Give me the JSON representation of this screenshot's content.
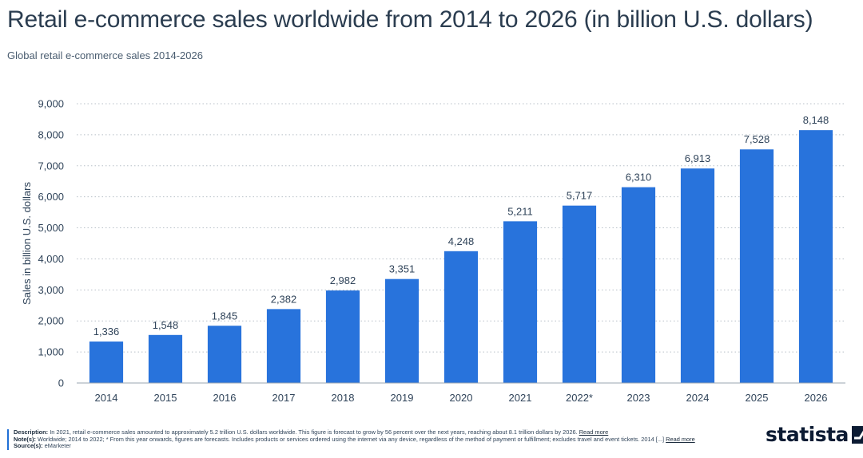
{
  "header": {
    "title": "Retail e-commerce sales worldwide from 2014 to 2026 (in billion U.S. dollars)",
    "subtitle": "Global retail e-commerce sales 2014-2026"
  },
  "chart_data": {
    "type": "bar",
    "categories": [
      "2014",
      "2015",
      "2016",
      "2017",
      "2018",
      "2019",
      "2020",
      "2021",
      "2022*",
      "2023",
      "2024",
      "2025",
      "2026"
    ],
    "values": [
      1336,
      1548,
      1845,
      2382,
      2982,
      3351,
      4248,
      5211,
      5717,
      6310,
      6913,
      7528,
      8148
    ],
    "value_labels": [
      "1,336",
      "1,548",
      "1,845",
      "2,382",
      "2,982",
      "3,351",
      "4,248",
      "5,211",
      "5,717",
      "6,310",
      "6,913",
      "7,528",
      "8,148"
    ],
    "title": "Retail e-commerce sales worldwide from 2014 to 2026 (in billion U.S. dollars)",
    "ylabel": "Sales in billion U.S. dollars",
    "xlabel": "",
    "ylim": [
      0,
      9000
    ],
    "yticks": [
      0,
      1000,
      2000,
      3000,
      4000,
      5000,
      6000,
      7000,
      8000,
      9000
    ],
    "ytick_labels": [
      "0",
      "1,000",
      "2,000",
      "3,000",
      "4,000",
      "5,000",
      "6,000",
      "7,000",
      "8,000",
      "9,000"
    ],
    "grid": true,
    "bar_color": "#2873dc"
  },
  "footer": {
    "description_label": "Description:",
    "description_text": "In 2021, retail e-commerce sales amounted to approximately 5.2 trillion U.S. dollars worldwide. This figure is forecast to grow by 56 percent over the next years, reaching about 8.1 trillion dollars by 2026.",
    "description_link": "Read more",
    "notes_label": "Note(s):",
    "notes_text": "Worldwide; 2014 to 2022; * From this year onwards, figures are forecasts. Includes products or services ordered using the internet via any device, regardless of the method of payment or fulfillment; excludes travel and event tickets. 2014 [...]",
    "notes_link": "Read more",
    "source_label": "Source(s):",
    "source_text": "eMarketer"
  },
  "logo": {
    "text": "statista",
    "icon": "statista-logo-icon",
    "color": "#0c1b33"
  }
}
